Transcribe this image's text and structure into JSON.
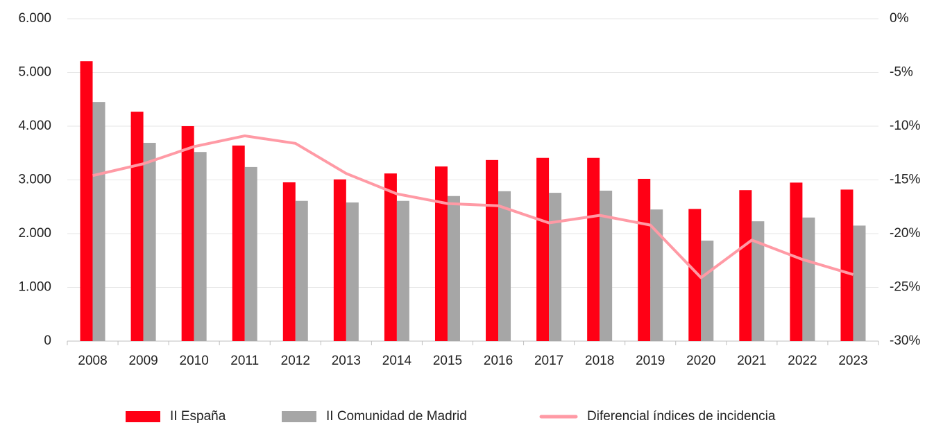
{
  "chart_data": {
    "type": "bar",
    "categories": [
      "2008",
      "2009",
      "2010",
      "2011",
      "2012",
      "2013",
      "2014",
      "2015",
      "2016",
      "2017",
      "2018",
      "2019",
      "2020",
      "2021",
      "2022",
      "2023"
    ],
    "series": [
      {
        "name": "II España",
        "type": "bar",
        "color": "#ff0015",
        "values": [
          5210,
          4270,
          4000,
          3640,
          2955,
          3010,
          3120,
          3250,
          3370,
          3410,
          3410,
          3020,
          2460,
          2810,
          2950,
          2820
        ]
      },
      {
        "name": "II Comunidad de Madrid",
        "type": "bar",
        "color": "#a6a6a6",
        "values": [
          4450,
          3690,
          3520,
          3240,
          2610,
          2580,
          2610,
          2700,
          2790,
          2760,
          2800,
          2450,
          1870,
          2230,
          2300,
          2150
        ]
      },
      {
        "name": "Diferencial índices de incidencia",
        "type": "line",
        "axis": "y2",
        "color": "#ff9aa5",
        "values": [
          -14.6,
          -13.5,
          -11.9,
          -10.9,
          -11.6,
          -14.4,
          -16.3,
          -17.2,
          -17.4,
          -19.0,
          -18.3,
          -19.2,
          -24.1,
          -20.6,
          -22.4,
          -23.8
        ]
      }
    ],
    "ylim": [
      0,
      6000
    ],
    "yticks": [
      0,
      {
        "value": 1000,
        "label": "1.000"
      },
      {
        "value": 2000,
        "label": "2.000"
      },
      {
        "value": 3000,
        "label": "3.000"
      },
      {
        "value": 4000,
        "label": "4.000"
      },
      {
        "value": 5000,
        "label": "5.000"
      },
      {
        "value": 6000,
        "label": "6.000"
      }
    ],
    "y2lim": [
      -30,
      0
    ],
    "y2ticks": [
      {
        "value": -30,
        "label": "-30%"
      },
      {
        "value": -25,
        "label": "-25%"
      },
      {
        "value": -20,
        "label": "-20%"
      },
      {
        "value": -15,
        "label": "-15%"
      },
      {
        "value": -10,
        "label": "-10%"
      },
      {
        "value": -5,
        "label": "-5%"
      },
      {
        "value": 0,
        "label": "0%"
      }
    ],
    "grid": true,
    "legend": "bottom"
  }
}
